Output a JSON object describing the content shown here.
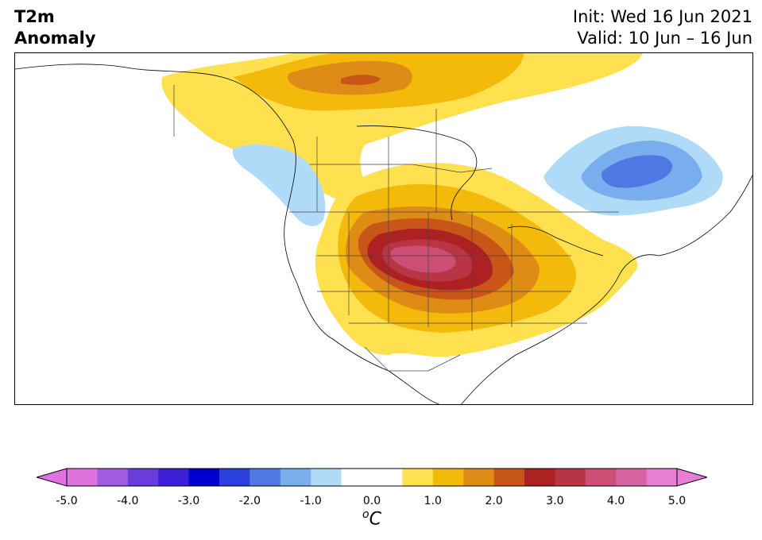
{
  "header": {
    "title_line1": "T2m",
    "title_line2": "Anomaly",
    "init": "Init: Wed 16 Jun 2021",
    "valid": "Valid: 10 Jun – 16 Jun"
  },
  "colorbar": {
    "ticks": [
      "-5.0",
      "-4.0",
      "-3.0",
      "-2.0",
      "-1.0",
      "0.0",
      "1.0",
      "2.0",
      "3.0",
      "4.0",
      "5.0"
    ],
    "tick_values": [
      -5,
      -4,
      -3,
      -2,
      -1,
      0,
      1,
      2,
      3,
      4,
      5
    ],
    "range": [
      -5,
      5
    ],
    "unit_sup": "o",
    "unit_base": "C",
    "colors": [
      "#df72df",
      "#a05de2",
      "#6a3ddb",
      "#3c1fd6",
      "#0000d0",
      "#2a3fdb",
      "#4f78e3",
      "#78aeee",
      "#b0dbf8",
      "#ffffff",
      "#ffffff",
      "#ffe04f",
      "#f3b90b",
      "#df8c16",
      "#c95619",
      "#ae2123",
      "#b83545",
      "#cc4e74",
      "#d863a1",
      "#e77ed3"
    ]
  },
  "map": {
    "region": "North America",
    "variable": "2 m temperature anomaly",
    "features": [
      "warm-anomaly-core-central-us",
      "warm-anomaly-northern-canada",
      "cold-anomaly-quebec",
      "cold-anomaly-pacific-northwest"
    ]
  }
}
